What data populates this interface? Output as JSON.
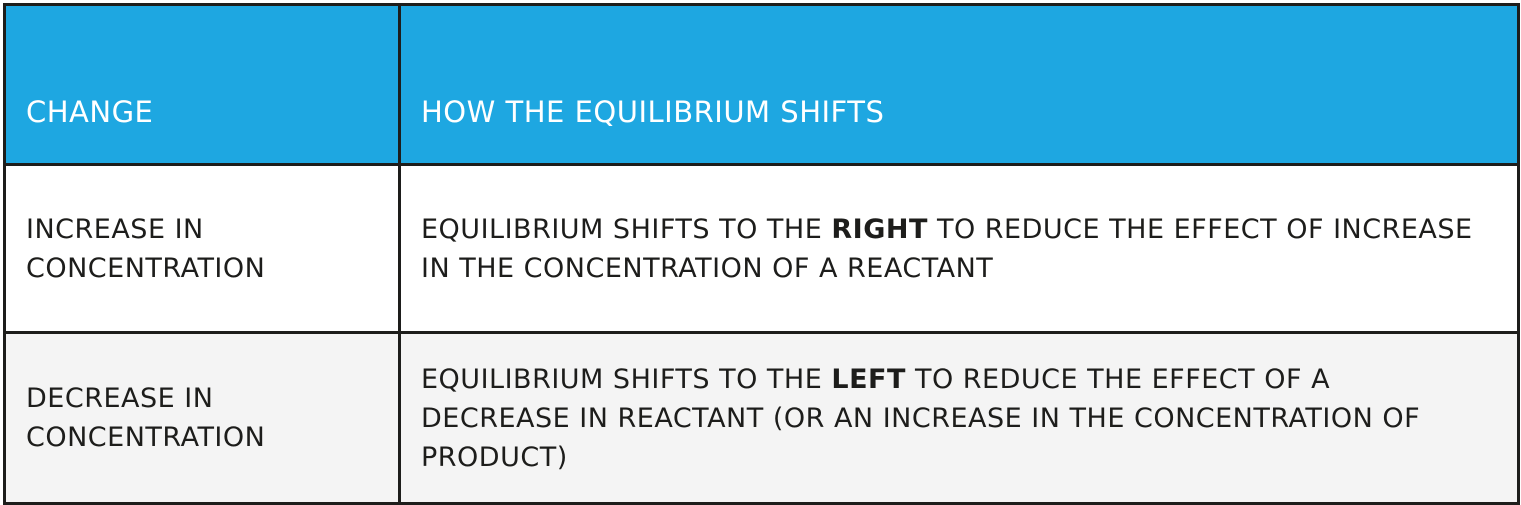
{
  "header": {
    "change": "CHANGE",
    "shift": "HOW THE EQUILIBRIUM SHIFTS"
  },
  "rows": [
    {
      "change": "INCREASE IN CONCENTRATION",
      "shift_before": "EQUILIBRIUM SHIFTS TO THE ",
      "shift_emphasis": "RIGHT",
      "shift_after": " TO REDUCE THE EFFECT OF INCREASE IN  THE CONCENTRATION OF A REACTANT"
    },
    {
      "change": "DECREASE IN CONCENTRATION",
      "shift_before": "EQUILIBRIUM SHIFTS TO THE ",
      "shift_emphasis": "LEFT",
      "shift_after": " TO REDUCE THE EFFECT OF A DECREASE IN REACTANT (OR AN INCREASE IN THE CONCENTRATION OF PRODUCT)"
    }
  ],
  "colors": {
    "header_bg": "#1ea7e1",
    "header_text": "#ffffff",
    "border": "#1d1d1b",
    "text": "#1d1d1b",
    "alt_row_bg": "#f4f4f4"
  }
}
